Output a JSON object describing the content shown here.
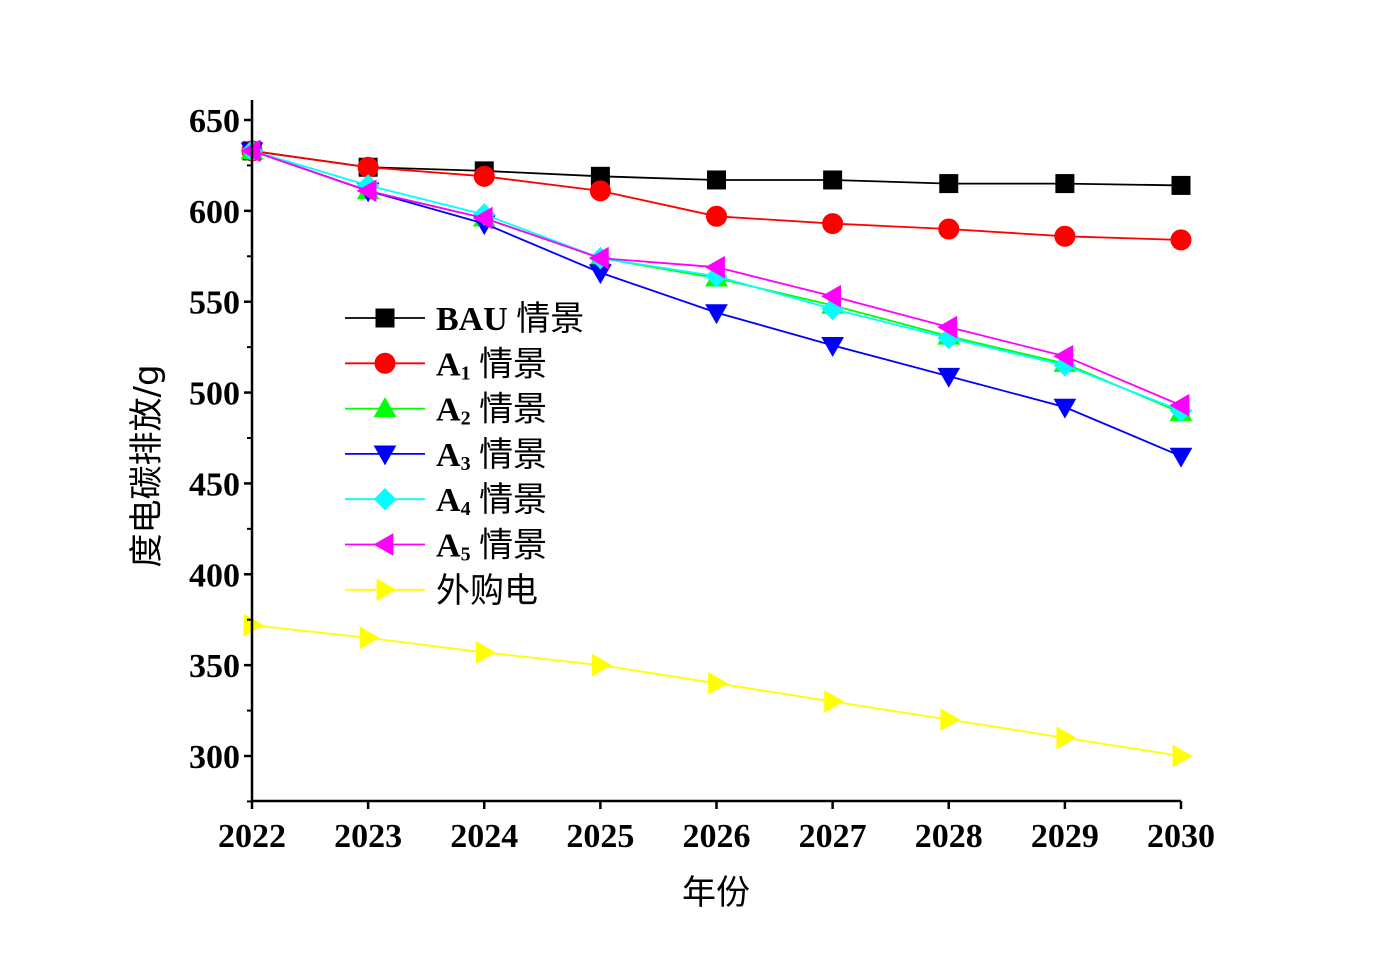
{
  "chart_data": {
    "type": "line",
    "xlabel": "年份",
    "ylabel": "度电碳排放/g",
    "x": [
      2022,
      2023,
      2024,
      2025,
      2026,
      2027,
      2028,
      2029,
      2030
    ],
    "xlim": [
      2022,
      2030
    ],
    "ylim": [
      275,
      650
    ],
    "yticks": [
      300,
      350,
      400,
      450,
      500,
      550,
      600,
      650
    ],
    "grid": false,
    "legend_position": "middle-left",
    "series": [
      {
        "name": "BAU 情景",
        "base": "BAU",
        "sub": "",
        "suffix": "情景",
        "color": "#000000",
        "marker": "square",
        "values": [
          633,
          624,
          622,
          619,
          617,
          617,
          615,
          615,
          614
        ]
      },
      {
        "name": "A1 情景",
        "base": "A",
        "sub": "1",
        "suffix": "情景",
        "color": "#ff0000",
        "marker": "circle",
        "values": [
          633,
          624,
          619,
          611,
          597,
          593,
          590,
          586,
          584
        ]
      },
      {
        "name": "A2 情景",
        "base": "A",
        "sub": "2",
        "suffix": "情景",
        "color": "#00ff00",
        "marker": "triangle-up",
        "values": [
          633,
          611,
          596,
          574,
          563,
          548,
          531,
          516,
          489
        ]
      },
      {
        "name": "A3 情景",
        "base": "A",
        "sub": "3",
        "suffix": "情景",
        "color": "#0000ff",
        "marker": "triangle-down",
        "values": [
          633,
          611,
          593,
          566,
          544,
          526,
          509,
          492,
          465
        ]
      },
      {
        "name": "A4 情景",
        "base": "A",
        "sub": "4",
        "suffix": "情景",
        "color": "#00ffff",
        "marker": "diamond",
        "values": [
          633,
          614,
          598,
          574,
          564,
          546,
          530,
          515,
          490
        ]
      },
      {
        "name": "A5 情景",
        "base": "A",
        "sub": "5",
        "suffix": "情景",
        "color": "#ff00ff",
        "marker": "triangle-left",
        "values": [
          633,
          611,
          596,
          574,
          569,
          553,
          536,
          520,
          493
        ]
      },
      {
        "name": "外购电",
        "base": "",
        "sub": "",
        "suffix": "外购电",
        "color": "#ffff00",
        "marker": "triangle-right",
        "values": [
          372,
          365,
          357,
          350,
          340,
          330,
          320,
          310,
          300
        ]
      }
    ]
  }
}
